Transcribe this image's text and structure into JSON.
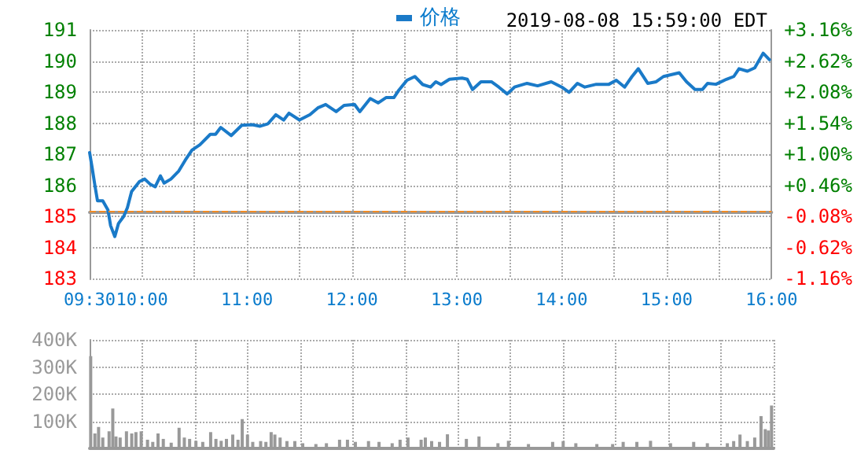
{
  "chart_data": [
    {
      "type": "line",
      "subtitle": "2019-08-08 15:59:00 EDT",
      "legend": "top",
      "grid": true,
      "marker": "none",
      "line_style": "solid",
      "xlim": [
        9.5,
        16
      ],
      "xticks": [
        {
          "value": 9.5,
          "label": "09:30"
        },
        {
          "value": 10,
          "label": "10:00"
        },
        {
          "value": 10.5,
          "label": null
        },
        {
          "value": 11,
          "label": "11:00"
        },
        {
          "value": 11.5,
          "label": null
        },
        {
          "value": 12,
          "label": "12:00"
        },
        {
          "value": 12.5,
          "label": null
        },
        {
          "value": 13,
          "label": "13:00"
        },
        {
          "value": 13.5,
          "label": null
        },
        {
          "value": 14,
          "label": "14:00"
        },
        {
          "value": 14.5,
          "label": null
        },
        {
          "value": 15,
          "label": "15:00"
        },
        {
          "value": 15.5,
          "label": null
        },
        {
          "value": 16,
          "label": "16:00"
        }
      ],
      "ylim": [
        183,
        191
      ],
      "yticks": [
        183,
        184,
        185,
        186,
        187,
        188,
        189,
        190,
        191
      ],
      "y2lim": [
        -1.16,
        3.16
      ],
      "y2ticks": [
        {
          "value": -1.16,
          "label": "-1.16%"
        },
        {
          "value": -0.62,
          "label": "-0.62%"
        },
        {
          "value": -0.08,
          "label": "-0.08%"
        },
        {
          "value": 0.46,
          "label": "+0.46%"
        },
        {
          "value": 1.0,
          "label": "+1.00%"
        },
        {
          "value": 1.54,
          "label": "+1.54%"
        },
        {
          "value": 2.08,
          "label": "+2.08%"
        },
        {
          "value": 2.62,
          "label": "+2.62%"
        },
        {
          "value": 3.16,
          "label": "+3.16%"
        }
      ],
      "ref_lines": [
        {
          "axis": "y",
          "value": 185.15,
          "color": "#f08a24",
          "line_style": "dashed"
        }
      ],
      "series": [
        {
          "name": "价格",
          "color": "#1a7ac8",
          "x": [
            9.5,
            9.525,
            9.55,
            9.575,
            9.625,
            9.675,
            9.7,
            9.74,
            9.775,
            9.825,
            9.86,
            9.9,
            9.975,
            10.025,
            10.075,
            10.125,
            10.175,
            10.21,
            10.275,
            10.35,
            10.41,
            10.475,
            10.55,
            10.65,
            10.7,
            10.75,
            10.85,
            10.95,
            11.05,
            11.125,
            11.2,
            11.275,
            11.35,
            11.4,
            11.5,
            11.6,
            11.675,
            11.75,
            11.85,
            11.925,
            12.025,
            12.075,
            12.175,
            12.25,
            12.325,
            12.4,
            12.45,
            12.525,
            12.6,
            12.675,
            12.75,
            12.8,
            12.85,
            12.93,
            13.05,
            13.1,
            13.15,
            13.23,
            13.33,
            13.4,
            13.48,
            13.55,
            13.67,
            13.77,
            13.9,
            14.0,
            14.07,
            14.15,
            14.22,
            14.33,
            14.45,
            14.52,
            14.6,
            14.67,
            14.73,
            14.82,
            14.9,
            14.97,
            15.12,
            15.19,
            15.27,
            15.34,
            15.39,
            15.47,
            15.57,
            15.64,
            15.69,
            15.77,
            15.84,
            15.92,
            15.98
          ],
          "values": [
            187.05,
            186.54,
            186.0,
            185.5,
            185.5,
            185.2,
            184.7,
            184.35,
            184.77,
            185.0,
            185.28,
            185.8,
            186.12,
            186.2,
            186.04,
            185.95,
            186.3,
            186.07,
            186.2,
            186.46,
            186.8,
            187.13,
            187.3,
            187.64,
            187.64,
            187.86,
            187.6,
            187.93,
            187.95,
            187.9,
            187.98,
            188.27,
            188.1,
            188.32,
            188.1,
            188.27,
            188.49,
            188.6,
            188.37,
            188.57,
            188.6,
            188.37,
            188.79,
            188.65,
            188.82,
            188.82,
            189.07,
            189.38,
            189.5,
            189.24,
            189.16,
            189.33,
            189.24,
            189.41,
            189.45,
            189.41,
            189.08,
            189.33,
            189.33,
            189.16,
            188.94,
            189.16,
            189.28,
            189.2,
            189.33,
            189.16,
            188.99,
            189.28,
            189.16,
            189.25,
            189.25,
            189.38,
            189.16,
            189.5,
            189.75,
            189.28,
            189.33,
            189.5,
            189.62,
            189.33,
            189.08,
            189.08,
            189.28,
            189.25,
            189.41,
            189.5,
            189.75,
            189.67,
            189.78,
            190.25,
            190.04
          ]
        }
      ]
    },
    {
      "type": "bar",
      "grid": true,
      "tick_labels": "y",
      "xlim": [
        9.5,
        16
      ],
      "xticks": [
        {
          "value": 9.5,
          "label": null
        },
        {
          "value": 10,
          "label": null
        },
        {
          "value": 10.5,
          "label": null
        },
        {
          "value": 11,
          "label": null
        },
        {
          "value": 11.5,
          "label": null
        },
        {
          "value": 12,
          "label": null
        },
        {
          "value": 12.5,
          "label": null
        },
        {
          "value": 13,
          "label": null
        },
        {
          "value": 13.5,
          "label": null
        },
        {
          "value": 14,
          "label": null
        },
        {
          "value": 14.5,
          "label": null
        },
        {
          "value": 15,
          "label": null
        },
        {
          "value": 15.5,
          "label": null
        },
        {
          "value": 16,
          "label": null
        }
      ],
      "ylim": [
        0,
        400000
      ],
      "yticks": [
        {
          "value": 100000,
          "label": "100K"
        },
        {
          "value": 200000,
          "label": "200K"
        },
        {
          "value": 300000,
          "label": "300K"
        },
        {
          "value": 400000,
          "label": "400K"
        }
      ],
      "series": [
        {
          "color": "#999999",
          "x": [
            9.51,
            9.55,
            9.585,
            9.625,
            9.685,
            9.72,
            9.75,
            9.79,
            9.85,
            9.9,
            9.94,
            9.99,
            10.05,
            10.1,
            10.15,
            10.2,
            10.275,
            10.35,
            10.4,
            10.45,
            10.51,
            10.575,
            10.65,
            10.7,
            10.75,
            10.8,
            10.86,
            10.91,
            10.95,
            11.0,
            11.05,
            11.125,
            11.175,
            11.225,
            11.26,
            11.31,
            11.375,
            11.45,
            11.525,
            11.65,
            11.75,
            11.875,
            11.95,
            12.025,
            12.15,
            12.25,
            12.375,
            12.45,
            12.525,
            12.65,
            12.69,
            12.75,
            12.825,
            12.9,
            13.08,
            13.2,
            13.38,
            13.48,
            13.67,
            13.9,
            14.0,
            14.12,
            14.32,
            14.47,
            14.57,
            14.7,
            14.83,
            15.02,
            15.24,
            15.37,
            15.56,
            15.62,
            15.68,
            15.75,
            15.82,
            15.88,
            15.92,
            15.95,
            15.98
          ],
          "values": [
            340000,
            55000,
            79000,
            40000,
            63000,
            147000,
            44000,
            40000,
            63000,
            55000,
            60000,
            63000,
            32000,
            24000,
            55000,
            35000,
            21000,
            76000,
            40000,
            35000,
            28000,
            24000,
            60000,
            35000,
            28000,
            35000,
            51000,
            32000,
            108000,
            51000,
            24000,
            27000,
            24000,
            60000,
            51000,
            40000,
            27000,
            27000,
            19000,
            16000,
            19000,
            32000,
            32000,
            24000,
            27000,
            24000,
            19000,
            32000,
            40000,
            32000,
            40000,
            27000,
            24000,
            52000,
            35000,
            44000,
            19000,
            28000,
            16000,
            24000,
            27000,
            19000,
            16000,
            16000,
            24000,
            24000,
            28000,
            19000,
            24000,
            19000,
            19000,
            27000,
            51000,
            27000,
            40000,
            119000,
            71000,
            66000,
            158000
          ]
        }
      ]
    }
  ]
}
